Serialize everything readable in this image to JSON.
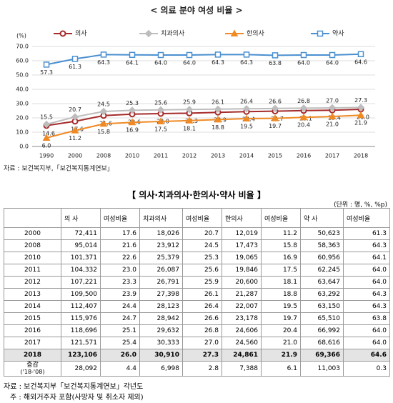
{
  "chart_data": {
    "type": "line",
    "title": "< 의료 분야 여성 비율 >",
    "y_label": "(%)",
    "categories": [
      "1990",
      "2000",
      "2008",
      "2010",
      "2011",
      "2012",
      "2013",
      "2014",
      "2015",
      "2016",
      "2017",
      "2018"
    ],
    "series": [
      {
        "name": "의사",
        "color": "#a52a2a",
        "marker": "circle",
        "label_pos": "below",
        "values": [
          14.6,
          17.6,
          21.6,
          22.6,
          23.0,
          23.3,
          23.9,
          24.4,
          24.7,
          25.1,
          25.4,
          26.0
        ],
        "value_labels": [
          "14.6",
          "17.6",
          "21.6",
          "22.6",
          "23.0",
          "23.3",
          "23.9",
          "24.4",
          "24.7",
          "25.1",
          "25.4",
          "26.0"
        ]
      },
      {
        "name": "치과의사",
        "color": "#bdbdbd",
        "marker": "diamond",
        "label_pos": "above",
        "values": [
          15.5,
          20.7,
          24.5,
          25.3,
          25.6,
          25.9,
          26.1,
          26.4,
          26.6,
          26.8,
          27.0,
          27.3
        ],
        "value_labels": [
          "15.5",
          "20.7",
          "24.5",
          "25.3",
          "25.6",
          "25.9",
          "26.1",
          "26.4",
          "26.6",
          "26.8",
          "27.0",
          "27.3"
        ]
      },
      {
        "name": "한의사",
        "color": "#f08a24",
        "marker": "triangle",
        "label_pos": "below",
        "values": [
          6.0,
          11.2,
          15.8,
          16.9,
          17.5,
          18.1,
          18.8,
          19.5,
          19.7,
          20.4,
          21.0,
          21.9
        ],
        "value_labels": [
          "6.0",
          "11.2",
          "15.8",
          "16.9",
          "17.5",
          "18.1",
          "18.8",
          "19.5",
          "19.7",
          "20.4",
          "21.0",
          "21.9"
        ]
      },
      {
        "name": "약사",
        "color": "#4a8fd0",
        "marker": "square",
        "label_pos": "below",
        "values": [
          57.3,
          61.3,
          64.3,
          64.1,
          64.0,
          64.0,
          64.3,
          64.3,
          63.8,
          64.0,
          64.0,
          64.6
        ],
        "value_labels": [
          "57.3",
          "61.3",
          "64.3",
          "64.1",
          "64.0",
          "64.0",
          "64.3",
          "64.3",
          "63.8",
          "64.0",
          "64.0",
          "64.6"
        ]
      }
    ],
    "ylim": [
      0,
      70
    ],
    "yticks": [
      {
        "value": 0,
        "label": "0.0"
      },
      {
        "value": 10,
        "label": "10.0"
      },
      {
        "value": 20,
        "label": "20.0"
      },
      {
        "value": 30,
        "label": "30.0"
      },
      {
        "value": 40,
        "label": "40.0"
      },
      {
        "value": 50,
        "label": "50.0"
      },
      {
        "value": 60,
        "label": "60.0"
      },
      {
        "value": 70,
        "label": "70.0"
      }
    ],
    "grid": true,
    "source": "자료 : 보건복지부,「보건복지통계연보」"
  },
  "table": {
    "title": "【 의사·치과의사·한의사·약사 비율 】",
    "unit": "(단위 : 명, %, %p)",
    "header": [
      "의 사",
      "여성비율",
      "치과의사",
      "여성비율",
      "한의사",
      "여성비율",
      "약 사",
      "여성비율"
    ],
    "rows": [
      [
        "2000",
        "72,411",
        "17.6",
        "18,026",
        "20.7",
        "12,019",
        "11.2",
        "50,623",
        "61.3"
      ],
      [
        "2008",
        "95,014",
        "21.6",
        "23,912",
        "24.5",
        "17,473",
        "15.8",
        "58,363",
        "64.3"
      ],
      [
        "2010",
        "101,371",
        "22.6",
        "25,379",
        "25.3",
        "19,065",
        "16.9",
        "60,956",
        "64.1"
      ],
      [
        "2011",
        "104,332",
        "23.0",
        "26,087",
        "25.6",
        "19,846",
        "17.5",
        "62,245",
        "64.0"
      ],
      [
        "2012",
        "107,221",
        "23.3",
        "26,791",
        "25.9",
        "20,600",
        "18.1",
        "63,647",
        "64.0"
      ],
      [
        "2013",
        "109,500",
        "23.9",
        "27,398",
        "26.1",
        "21,287",
        "18.8",
        "63,292",
        "64.3"
      ],
      [
        "2014",
        "112,407",
        "24.4",
        "28,123",
        "26.4",
        "22,007",
        "19.5",
        "63,150",
        "64.3"
      ],
      [
        "2015",
        "115,976",
        "24.7",
        "28,942",
        "26.6",
        "23,178",
        "19.7",
        "65,510",
        "63.8"
      ],
      [
        "2016",
        "118,696",
        "25.1",
        "29,632",
        "26.8",
        "24,606",
        "20.4",
        "66,992",
        "64.0"
      ],
      [
        "2017",
        "121,571",
        "25.4",
        "30,333",
        "27.0",
        "24,560",
        "21.0",
        "68,616",
        "64.0"
      ],
      [
        "2018",
        "123,106",
        "26.0",
        "30,910",
        "27.3",
        "24,861",
        "21.9",
        "69,366",
        "64.6"
      ]
    ],
    "change_row": {
      "label": [
        "증감",
        "('18-'08)"
      ],
      "cells": [
        "28,092",
        "4.4",
        "6,998",
        "2.8",
        "7,388",
        "6.1",
        "11,003",
        "0.3"
      ]
    },
    "notes": [
      "자료 : 보건복지부「보건복지통계연보」각년도",
      "주 : 해외거주자 포함(사망자 및 취소자 제외)"
    ]
  }
}
